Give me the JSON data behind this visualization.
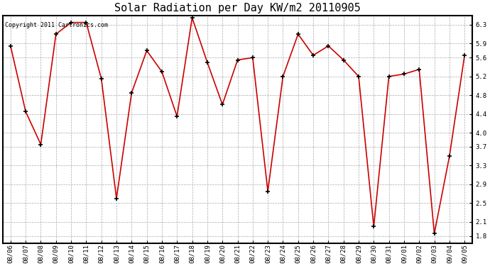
{
  "title": "Solar Radiation per Day KW/m2 20110905",
  "copyright_text": "Copyright 2011 Cartronics.com",
  "labels": [
    "08/06",
    "08/07",
    "08/08",
    "08/09",
    "08/10",
    "08/11",
    "08/12",
    "08/13",
    "08/14",
    "08/15",
    "08/16",
    "08/17",
    "08/18",
    "08/19",
    "08/20",
    "08/21",
    "08/22",
    "08/23",
    "08/24",
    "08/25",
    "08/26",
    "08/27",
    "08/28",
    "08/29",
    "08/30",
    "08/31",
    "09/01",
    "09/02",
    "09/03",
    "09/04",
    "09/05"
  ],
  "values": [
    5.85,
    4.45,
    3.75,
    6.1,
    6.35,
    6.35,
    5.15,
    2.6,
    4.85,
    5.75,
    5.3,
    4.35,
    6.45,
    5.5,
    4.6,
    5.55,
    5.6,
    2.75,
    5.2,
    6.1,
    5.65,
    5.85,
    5.55,
    5.2,
    2.0,
    5.2,
    5.25,
    5.35,
    1.85,
    3.5,
    5.65
  ],
  "line_color": "#cc0000",
  "marker": "+",
  "marker_size": 5,
  "marker_color": "#000000",
  "ylim": [
    1.65,
    6.5
  ],
  "yticks": [
    1.8,
    2.1,
    2.5,
    2.9,
    3.3,
    3.7,
    4.0,
    4.4,
    4.8,
    5.2,
    5.6,
    5.9,
    6.3
  ],
  "grid_color": "#aaaaaa",
  "bg_color": "#ffffff",
  "title_fontsize": 11,
  "label_fontsize": 6.5,
  "copyright_fontsize": 6,
  "line_width": 1.2,
  "marker_edge_width": 1.2
}
